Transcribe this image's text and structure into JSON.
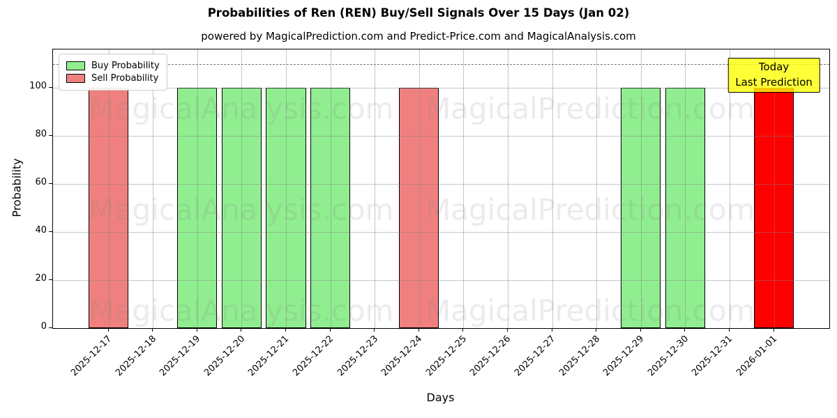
{
  "figure": {
    "title": "Probabilities of Ren (REN) Buy/Sell Signals Over 15 Days (Jan 02)",
    "subtitle": "powered by MagicalPrediction.com and Predict-Price.com and MagicalAnalysis.com"
  },
  "chart_data": {
    "type": "bar",
    "title": "Probabilities of Ren (REN) Buy/Sell Signals Over 15 Days (Jan 02)",
    "subtitle": "powered by MagicalPrediction.com and Predict-Price.com and MagicalAnalysis.com",
    "xlabel": "Days",
    "ylabel": "Probability",
    "categories": [
      "2025-12-17",
      "2025-12-18",
      "2025-12-19",
      "2025-12-20",
      "2025-12-21",
      "2025-12-22",
      "2025-12-23",
      "2025-12-24",
      "2025-12-25",
      "2025-12-26",
      "2025-12-27",
      "2025-12-28",
      "2025-12-29",
      "2025-12-30",
      "2025-12-31",
      "2026-01-01"
    ],
    "series": [
      {
        "name": "Buy Probability",
        "color": "#90ee90",
        "values": [
          0,
          0,
          100,
          100,
          100,
          100,
          0,
          0,
          0,
          0,
          0,
          0,
          100,
          100,
          0,
          0
        ]
      },
      {
        "name": "Sell Probability",
        "color": "#f08080",
        "values": [
          100,
          0,
          0,
          0,
          0,
          0,
          0,
          100,
          0,
          0,
          0,
          0,
          0,
          0,
          0,
          0
        ]
      },
      {
        "name": "Today Last Prediction",
        "color": "#ff0000",
        "values": [
          0,
          0,
          0,
          0,
          0,
          0,
          0,
          0,
          0,
          0,
          0,
          0,
          0,
          0,
          0,
          100
        ]
      }
    ],
    "bar_edge_color": "#000000",
    "bar_width_fraction": 0.9,
    "ylim": [
      0,
      116
    ],
    "yticks": [
      0,
      20,
      40,
      60,
      80,
      100
    ],
    "grid": true,
    "legend_position": "upper left",
    "dashed_line": {
      "y": 110,
      "color": "#808080",
      "style": "dashed"
    },
    "annotation": {
      "lines": [
        "Today",
        "Last Prediction"
      ],
      "facecolor": "#ffff00",
      "edgecolor": "#000000",
      "category_index": 15
    }
  },
  "legend": {
    "items": [
      {
        "label": "Buy Probability",
        "color": "#90ee90",
        "edge": "#000000"
      },
      {
        "label": "Sell Probability",
        "color": "#f08080",
        "edge": "#000000"
      }
    ]
  },
  "watermarks": {
    "left_text": "MagicalAnalysis.com",
    "right_text": "MagicalPrediction.com",
    "color": "#808080"
  }
}
